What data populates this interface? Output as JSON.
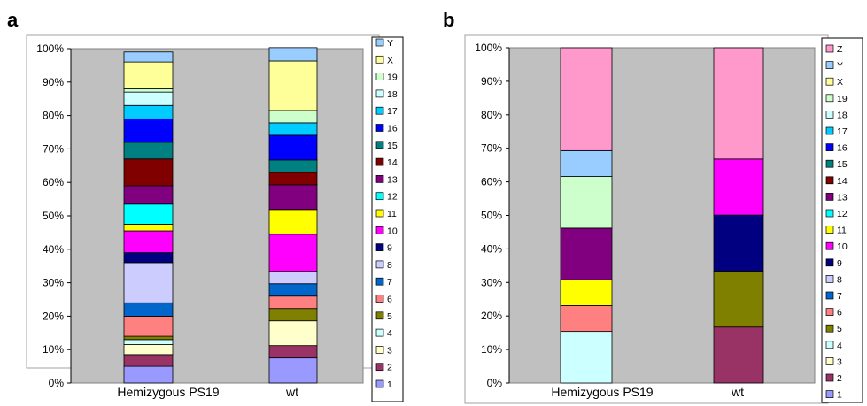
{
  "colors": {
    "1": "#9999ff",
    "2": "#993366",
    "3": "#ffffcc",
    "4": "#ccffff",
    "5": "#808000",
    "6": "#ff8080",
    "7": "#0066cc",
    "8": "#ccccff",
    "9": "#000080",
    "10": "#ff00ff",
    "11": "#ffff00",
    "12": "#00ffff",
    "13": "#800080",
    "14": "#800000",
    "15": "#008080",
    "16": "#0000ff",
    "17": "#00ccff",
    "18": "#ccffff",
    "19": "#ccffcc",
    "X": "#ffff99",
    "Y": "#99ccff",
    "Z": "#ff99cc"
  },
  "chart_data": [
    {
      "panel_label": "a",
      "type": "bar",
      "stacked": true,
      "normalized_percent": true,
      "categories": [
        "Hemizygous PS19",
        "wt"
      ],
      "ylim": [
        0,
        100
      ],
      "yticks": [
        "0%",
        "10%",
        "20%",
        "30%",
        "40%",
        "50%",
        "60%",
        "70%",
        "80%",
        "90%",
        "100%"
      ],
      "grid": false,
      "legend_position": "right",
      "legend_order": [
        "Y",
        "X",
        "19",
        "18",
        "17",
        "16",
        "15",
        "14",
        "13",
        "12",
        "11",
        "10",
        "9",
        "8",
        "7",
        "6",
        "5",
        "4",
        "3",
        "2",
        "1"
      ],
      "series": [
        {
          "name": "1",
          "values": [
            5,
            7.5
          ]
        },
        {
          "name": "2",
          "values": [
            3.5,
            3.7
          ]
        },
        {
          "name": "3",
          "values": [
            3,
            7.4
          ]
        },
        {
          "name": "4",
          "values": [
            1.5,
            0
          ]
        },
        {
          "name": "5",
          "values": [
            1,
            3.7
          ]
        },
        {
          "name": "6",
          "values": [
            6,
            3.7
          ]
        },
        {
          "name": "7",
          "values": [
            4,
            3.7
          ]
        },
        {
          "name": "8",
          "values": [
            12,
            3.7
          ]
        },
        {
          "name": "9",
          "values": [
            3,
            0
          ]
        },
        {
          "name": "10",
          "values": [
            6.5,
            11.1
          ]
        },
        {
          "name": "11",
          "values": [
            2,
            7.4
          ]
        },
        {
          "name": "12",
          "values": [
            6,
            0
          ]
        },
        {
          "name": "13",
          "values": [
            5.5,
            7.4
          ]
        },
        {
          "name": "14",
          "values": [
            8,
            3.7
          ]
        },
        {
          "name": "15",
          "values": [
            5,
            3.7
          ]
        },
        {
          "name": "16",
          "values": [
            7,
            7.4
          ]
        },
        {
          "name": "17",
          "values": [
            4,
            3.7
          ]
        },
        {
          "name": "18",
          "values": [
            4,
            0
          ]
        },
        {
          "name": "19",
          "values": [
            1,
            3.7
          ]
        },
        {
          "name": "X",
          "values": [
            8,
            14.8
          ]
        },
        {
          "name": "Y",
          "values": [
            3,
            4.0
          ]
        }
      ]
    },
    {
      "panel_label": "b",
      "type": "bar",
      "stacked": true,
      "normalized_percent": true,
      "categories": [
        "Hemizygous PS19",
        "wt"
      ],
      "ylim": [
        0,
        100
      ],
      "yticks": [
        "0%",
        "10%",
        "20%",
        "30%",
        "40%",
        "50%",
        "60%",
        "70%",
        "80%",
        "90%",
        "100%"
      ],
      "grid": false,
      "legend_position": "right",
      "legend_order": [
        "Z",
        "Y",
        "X",
        "19",
        "18",
        "17",
        "16",
        "15",
        "14",
        "13",
        "12",
        "11",
        "10",
        "9",
        "8",
        "7",
        "6",
        "5",
        "4",
        "3",
        "2",
        "1"
      ],
      "series": [
        {
          "name": "1",
          "values": [
            0,
            0
          ]
        },
        {
          "name": "2",
          "values": [
            0,
            16.7
          ]
        },
        {
          "name": "3",
          "values": [
            0,
            0
          ]
        },
        {
          "name": "4",
          "values": [
            15.4,
            0
          ]
        },
        {
          "name": "5",
          "values": [
            0,
            16.7
          ]
        },
        {
          "name": "6",
          "values": [
            7.7,
            0
          ]
        },
        {
          "name": "7",
          "values": [
            0,
            0
          ]
        },
        {
          "name": "8",
          "values": [
            0,
            0
          ]
        },
        {
          "name": "9",
          "values": [
            0,
            16.7
          ]
        },
        {
          "name": "10",
          "values": [
            0,
            16.7
          ]
        },
        {
          "name": "11",
          "values": [
            7.7,
            0
          ]
        },
        {
          "name": "12",
          "values": [
            0,
            0
          ]
        },
        {
          "name": "13",
          "values": [
            15.4,
            0
          ]
        },
        {
          "name": "14",
          "values": [
            0,
            0
          ]
        },
        {
          "name": "15",
          "values": [
            0,
            0
          ]
        },
        {
          "name": "16",
          "values": [
            0,
            0
          ]
        },
        {
          "name": "17",
          "values": [
            0,
            0
          ]
        },
        {
          "name": "18",
          "values": [
            0,
            0
          ]
        },
        {
          "name": "19",
          "values": [
            15.4,
            0
          ]
        },
        {
          "name": "X",
          "values": [
            0,
            0
          ]
        },
        {
          "name": "Y",
          "values": [
            7.7,
            0
          ]
        },
        {
          "name": "Z",
          "values": [
            30.7,
            33.2
          ]
        }
      ]
    }
  ]
}
